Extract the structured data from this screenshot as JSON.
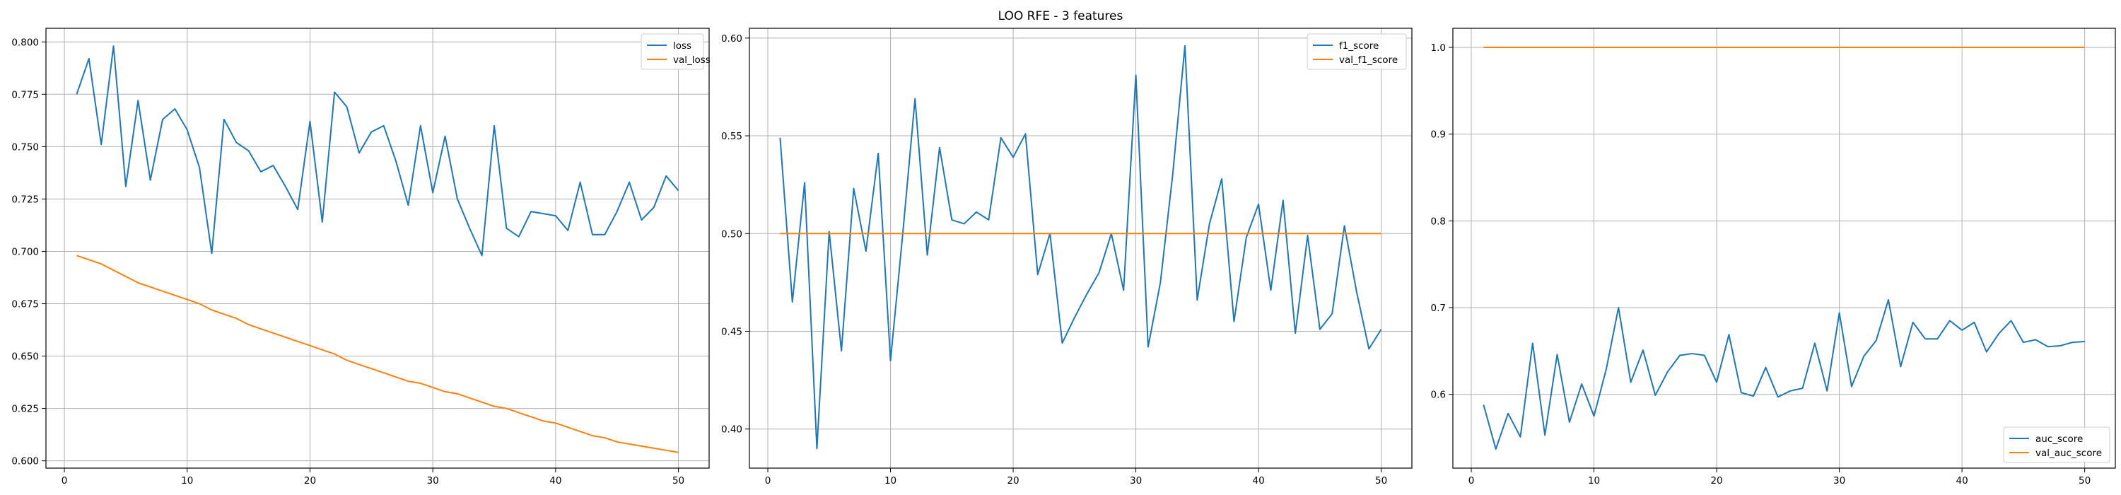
{
  "figure": {
    "suptitle": "LOO RFE - 3 features"
  },
  "colors": {
    "series1": "#1f77b4",
    "series2": "#ff7f0e",
    "grid": "#b0b0b0",
    "axes": "#000000"
  },
  "chart_data": [
    {
      "type": "line",
      "title": "",
      "xlabel": "",
      "ylabel": "",
      "grid": true,
      "legend_position": "top-right",
      "xlim": [
        -1.5,
        52.5
      ],
      "ylim": [
        0.5965,
        0.8065
      ],
      "xticks": [
        0,
        10,
        20,
        30,
        40,
        50
      ],
      "yticks": [
        0.6,
        0.625,
        0.65,
        0.675,
        0.7,
        0.725,
        0.75,
        0.775,
        0.8
      ],
      "ytick_decimals": 3,
      "x": [
        1,
        2,
        3,
        4,
        5,
        6,
        7,
        8,
        9,
        10,
        11,
        12,
        13,
        14,
        15,
        16,
        17,
        18,
        19,
        20,
        21,
        22,
        23,
        24,
        25,
        26,
        27,
        28,
        29,
        30,
        31,
        32,
        33,
        34,
        35,
        36,
        37,
        38,
        39,
        40,
        41,
        42,
        43,
        44,
        45,
        46,
        47,
        48,
        49,
        50
      ],
      "series": [
        {
          "name": "loss",
          "values": [
            0.775,
            0.792,
            0.751,
            0.798,
            0.731,
            0.772,
            0.734,
            0.763,
            0.768,
            0.758,
            0.74,
            0.699,
            0.763,
            0.752,
            0.748,
            0.738,
            0.741,
            0.731,
            0.72,
            0.762,
            0.714,
            0.776,
            0.769,
            0.747,
            0.757,
            0.76,
            0.743,
            0.722,
            0.76,
            0.728,
            0.755,
            0.725,
            0.711,
            0.698,
            0.76,
            0.711,
            0.707,
            0.719,
            0.718,
            0.717,
            0.71,
            0.733,
            0.708,
            0.708,
            0.719,
            0.733,
            0.715,
            0.721,
            0.736,
            0.729
          ]
        },
        {
          "name": "val_loss",
          "values": [
            0.698,
            0.696,
            0.694,
            0.691,
            0.688,
            0.685,
            0.683,
            0.681,
            0.679,
            0.677,
            0.675,
            0.672,
            0.67,
            0.668,
            0.665,
            0.663,
            0.661,
            0.659,
            0.657,
            0.655,
            0.653,
            0.651,
            0.648,
            0.646,
            0.644,
            0.642,
            0.64,
            0.638,
            0.637,
            0.635,
            0.633,
            0.632,
            0.63,
            0.628,
            0.626,
            0.625,
            0.623,
            0.621,
            0.619,
            0.618,
            0.616,
            0.614,
            0.612,
            0.611,
            0.609,
            0.608,
            0.607,
            0.606,
            0.605,
            0.604
          ]
        }
      ]
    },
    {
      "type": "line",
      "title": "",
      "xlabel": "",
      "ylabel": "",
      "grid": true,
      "legend_position": "top-right",
      "xlim": [
        -1.5,
        52.5
      ],
      "ylim": [
        0.38,
        0.605
      ],
      "xticks": [
        0,
        10,
        20,
        30,
        40,
        50
      ],
      "yticks": [
        0.4,
        0.45,
        0.5,
        0.55,
        0.6
      ],
      "ytick_decimals": 2,
      "x": [
        1,
        2,
        3,
        4,
        5,
        6,
        7,
        8,
        9,
        10,
        11,
        12,
        13,
        14,
        15,
        16,
        17,
        18,
        19,
        20,
        21,
        22,
        23,
        24,
        25,
        26,
        27,
        28,
        29,
        30,
        31,
        32,
        33,
        34,
        35,
        36,
        37,
        38,
        39,
        40,
        41,
        42,
        43,
        44,
        45,
        46,
        47,
        48,
        49,
        50
      ],
      "series": [
        {
          "name": "f1_score",
          "values": [
            0.549,
            0.465,
            0.526,
            0.39,
            0.501,
            0.44,
            0.523,
            0.491,
            0.541,
            0.435,
            0.5,
            0.569,
            0.489,
            0.544,
            0.507,
            0.505,
            0.511,
            0.507,
            0.549,
            0.539,
            0.551,
            0.479,
            0.5,
            0.444,
            0.457,
            0.469,
            0.48,
            0.5,
            0.471,
            0.581,
            0.442,
            0.475,
            0.53,
            0.596,
            0.466,
            0.505,
            0.528,
            0.455,
            0.498,
            0.515,
            0.471,
            0.517,
            0.449,
            0.499,
            0.451,
            0.459,
            0.504,
            0.47,
            0.441,
            0.451
          ]
        },
        {
          "name": "val_f1_score",
          "values": [
            0.5,
            0.5,
            0.5,
            0.5,
            0.5,
            0.5,
            0.5,
            0.5,
            0.5,
            0.5,
            0.5,
            0.5,
            0.5,
            0.5,
            0.5,
            0.5,
            0.5,
            0.5,
            0.5,
            0.5,
            0.5,
            0.5,
            0.5,
            0.5,
            0.5,
            0.5,
            0.5,
            0.5,
            0.5,
            0.5,
            0.5,
            0.5,
            0.5,
            0.5,
            0.5,
            0.5,
            0.5,
            0.5,
            0.5,
            0.5,
            0.5,
            0.5,
            0.5,
            0.5,
            0.5,
            0.5,
            0.5,
            0.5,
            0.5,
            0.5
          ]
        }
      ]
    },
    {
      "type": "line",
      "title": "",
      "xlabel": "",
      "ylabel": "",
      "grid": true,
      "legend_position": "bottom-right",
      "xlim": [
        -1.5,
        52.5
      ],
      "ylim": [
        0.515,
        1.022
      ],
      "xticks": [
        0,
        10,
        20,
        30,
        40,
        50
      ],
      "yticks": [
        0.6,
        0.7,
        0.8,
        0.9,
        1.0
      ],
      "ytick_decimals": 1,
      "x": [
        1,
        2,
        3,
        4,
        5,
        6,
        7,
        8,
        9,
        10,
        11,
        12,
        13,
        14,
        15,
        16,
        17,
        18,
        19,
        20,
        21,
        22,
        23,
        24,
        25,
        26,
        27,
        28,
        29,
        30,
        31,
        32,
        33,
        34,
        35,
        36,
        37,
        38,
        39,
        40,
        41,
        42,
        43,
        44,
        45,
        46,
        47,
        48,
        49,
        50
      ],
      "series": [
        {
          "name": "auc_score",
          "values": [
            0.588,
            0.537,
            0.578,
            0.551,
            0.659,
            0.553,
            0.646,
            0.568,
            0.612,
            0.575,
            0.629,
            0.7,
            0.614,
            0.651,
            0.599,
            0.626,
            0.645,
            0.647,
            0.645,
            0.614,
            0.669,
            0.602,
            0.598,
            0.631,
            0.597,
            0.604,
            0.607,
            0.659,
            0.604,
            0.694,
            0.609,
            0.644,
            0.662,
            0.709,
            0.632,
            0.683,
            0.664,
            0.664,
            0.685,
            0.674,
            0.683,
            0.649,
            0.67,
            0.685,
            0.66,
            0.663,
            0.655,
            0.656,
            0.66,
            0.661
          ]
        },
        {
          "name": "val_auc_score",
          "values": [
            1.0,
            1.0,
            1.0,
            1.0,
            1.0,
            1.0,
            1.0,
            1.0,
            1.0,
            1.0,
            1.0,
            1.0,
            1.0,
            1.0,
            1.0,
            1.0,
            1.0,
            1.0,
            1.0,
            1.0,
            1.0,
            1.0,
            1.0,
            1.0,
            1.0,
            1.0,
            1.0,
            1.0,
            1.0,
            1.0,
            1.0,
            1.0,
            1.0,
            1.0,
            1.0,
            1.0,
            1.0,
            1.0,
            1.0,
            1.0,
            1.0,
            1.0,
            1.0,
            1.0,
            1.0,
            1.0,
            1.0,
            1.0,
            1.0,
            1.0
          ]
        }
      ]
    }
  ]
}
